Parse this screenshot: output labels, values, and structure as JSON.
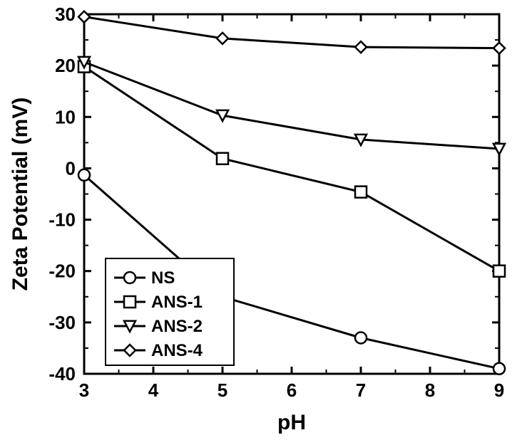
{
  "chart": {
    "type": "line",
    "background_color": "#ffffff",
    "line_color": "#000000",
    "axis_color": "#000000",
    "text_color": "#000000",
    "font_family": "Arial",
    "xlabel": "pH",
    "ylabel": "Zeta Potential (mV)",
    "xlabel_fontsize": 30,
    "ylabel_fontsize": 30,
    "tick_fontsize": 26,
    "xlim": [
      3,
      9
    ],
    "ylim": [
      -40,
      30
    ],
    "xticks": [
      3,
      4,
      5,
      6,
      7,
      8,
      9
    ],
    "yticks": [
      -40,
      -30,
      -20,
      -10,
      0,
      10,
      20,
      30
    ],
    "axis_linewidth": 3,
    "major_tick_length": 10,
    "minor_tick_length": 6,
    "x_minor_per_major": 1,
    "y_minor_per_major": 1,
    "series_linewidth": 3,
    "marker_size": 16,
    "marker_linewidth": 2.5,
    "marker_fill": "#ffffff",
    "marker_stroke": "#000000",
    "legend": {
      "position": "bottom-left-inside",
      "fontsize": 24,
      "box_linewidth": 2,
      "items": [
        {
          "label": "NS",
          "marker": "circle"
        },
        {
          "label": "ANS-1",
          "marker": "square"
        },
        {
          "label": "ANS-2",
          "marker": "triangle-down"
        },
        {
          "label": "ANS-4",
          "marker": "diamond"
        }
      ]
    },
    "series": [
      {
        "name": "NS",
        "marker": "circle",
        "x": [
          3,
          5,
          7,
          9
        ],
        "y": [
          -1.3,
          -25.0,
          -33.0,
          -39.0
        ]
      },
      {
        "name": "ANS-1",
        "marker": "square",
        "x": [
          3,
          5,
          7,
          9
        ],
        "y": [
          19.8,
          1.9,
          -4.6,
          -20.0
        ]
      },
      {
        "name": "ANS-2",
        "marker": "triangle-down",
        "x": [
          3,
          5,
          7,
          9
        ],
        "y": [
          20.7,
          10.3,
          5.6,
          3.8
        ]
      },
      {
        "name": "ANS-4",
        "marker": "diamond",
        "x": [
          3,
          5,
          7,
          9
        ],
        "y": [
          29.5,
          25.3,
          23.6,
          23.4
        ]
      }
    ]
  }
}
